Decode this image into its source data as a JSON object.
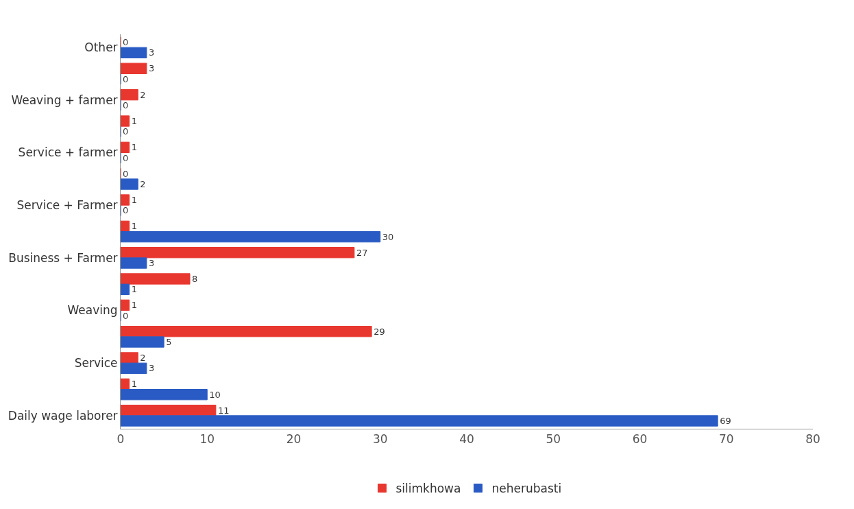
{
  "chart_data": {
    "type": "bar",
    "orientation": "horizontal",
    "categories": [
      "Other",
      null,
      "Weaving + farmer",
      null,
      "Service + farmer",
      null,
      "Service + Farmer",
      null,
      "Business + Farmer",
      null,
      "Weaving",
      null,
      "Service",
      null,
      "Daily wage laborer"
    ],
    "series": [
      {
        "name": "silimkhowa",
        "color": "#e8372f",
        "values": [
          0,
          3,
          2,
          1,
          1,
          0,
          1,
          1,
          27,
          8,
          1,
          29,
          2,
          1,
          11
        ]
      },
      {
        "name": "neherubasti",
        "color": "#2a5bc4",
        "values": [
          3,
          0,
          0,
          0,
          0,
          2,
          0,
          30,
          3,
          1,
          0,
          5,
          3,
          10,
          69
        ]
      }
    ],
    "xlim": [
      0,
      80
    ],
    "xticks": [
      0,
      10,
      20,
      30,
      40,
      50,
      60,
      70,
      80
    ],
    "data_labels": true,
    "legend": "bottom"
  }
}
